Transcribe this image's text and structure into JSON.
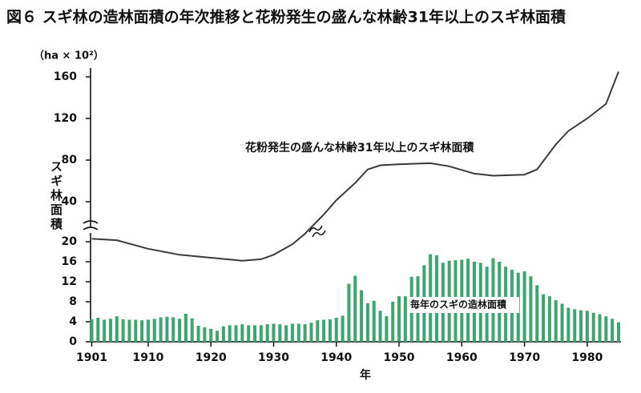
{
  "chart_data": {
    "type": "combo",
    "title": "図６ スギ林の造林面積の年次推移と花粉発生の盛んな林齢31年以上のスギ林面積",
    "y_unit": "（ha × 10²）",
    "ylabel": "スギ林面積",
    "xlabel": "年",
    "xlim": [
      1901,
      1985
    ],
    "xticks": [
      1901,
      1910,
      1920,
      1930,
      1940,
      1950,
      1960,
      1970,
      1980
    ],
    "lower_ylim": [
      0,
      22
    ],
    "upper_ylim": [
      15,
      168
    ],
    "lower_yticks": [
      0,
      4,
      8,
      12,
      16,
      20
    ],
    "upper_yticks": [
      40,
      80,
      120,
      160
    ],
    "series": [
      {
        "name": "毎年のスギの造林面積",
        "type": "bar",
        "color": "#3aa76d",
        "x": [
          1901,
          1902,
          1903,
          1904,
          1905,
          1906,
          1907,
          1908,
          1909,
          1910,
          1911,
          1912,
          1913,
          1914,
          1915,
          1916,
          1917,
          1918,
          1919,
          1920,
          1921,
          1922,
          1923,
          1924,
          1925,
          1926,
          1927,
          1928,
          1929,
          1930,
          1931,
          1932,
          1933,
          1934,
          1935,
          1936,
          1937,
          1938,
          1939,
          1940,
          1941,
          1942,
          1943,
          1944,
          1945,
          1946,
          1947,
          1948,
          1949,
          1950,
          1951,
          1952,
          1953,
          1954,
          1955,
          1956,
          1957,
          1958,
          1959,
          1960,
          1961,
          1962,
          1963,
          1964,
          1965,
          1966,
          1967,
          1968,
          1969,
          1970,
          1971,
          1972,
          1973,
          1974,
          1975,
          1976,
          1977,
          1978,
          1979,
          1980,
          1981,
          1982,
          1983,
          1984,
          1985
        ],
        "values": [
          4.5,
          4.8,
          4.4,
          4.6,
          5.1,
          4.5,
          4.4,
          4.4,
          4.3,
          4.4,
          4.6,
          4.9,
          5.0,
          4.9,
          4.6,
          5.6,
          4.7,
          3.2,
          2.9,
          2.6,
          2.2,
          3.1,
          3.3,
          3.3,
          3.5,
          3.3,
          3.3,
          3.3,
          3.5,
          3.6,
          3.5,
          3.3,
          3.6,
          3.6,
          3.5,
          3.8,
          4.3,
          4.4,
          4.5,
          4.8,
          5.2,
          11.6,
          13.2,
          10.3,
          7.7,
          8.2,
          6.2,
          5.1,
          8.0,
          9.1,
          9.1,
          13.0,
          13.1,
          15.3,
          17.5,
          17.3,
          15.8,
          16.2,
          16.3,
          16.4,
          16.6,
          16.0,
          15.8,
          15.0,
          16.7,
          16.0,
          15.0,
          14.4,
          13.8,
          14.1,
          13.1,
          11.3,
          9.5,
          9.1,
          8.3,
          7.6,
          6.8,
          6.5,
          6.3,
          6.2,
          5.8,
          5.5,
          5.1,
          4.6,
          3.9
        ]
      },
      {
        "name": "花粉発生の盛んな林齢31年以上のスギ林面積",
        "type": "line",
        "color": "#3a3a3a",
        "x": [
          1901,
          1905,
          1910,
          1915,
          1920,
          1925,
          1928,
          1930,
          1933,
          1935,
          1938,
          1940,
          1943,
          1945,
          1947,
          1950,
          1955,
          1958,
          1962,
          1965,
          1970,
          1972,
          1975,
          1977,
          1980,
          1983,
          1985
        ],
        "values": [
          20.6,
          20.3,
          18.6,
          17.4,
          16.8,
          16.2,
          16.5,
          17.4,
          19.5,
          21.6,
          27.7,
          41.5,
          58,
          71,
          75,
          76,
          77,
          74,
          67,
          65,
          66,
          71,
          95,
          108,
          120,
          134,
          165
        ]
      }
    ]
  }
}
